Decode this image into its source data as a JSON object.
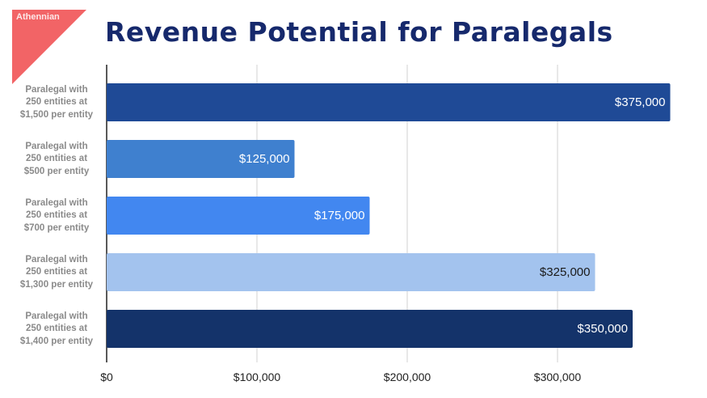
{
  "watermark": {
    "corner_text": "Athennian"
  },
  "chart_data": {
    "type": "bar",
    "orientation": "horizontal",
    "title": "Revenue Potential for Paralegals",
    "categories": [
      [
        "Paralegal with",
        "250 entities at",
        "$1,500 per entity"
      ],
      [
        "Paralegal with",
        "250 entities at",
        "$500 per entity"
      ],
      [
        "Paralegal with",
        "250 entities at",
        "$700 per entity"
      ],
      [
        "Paralegal with",
        "250 entities at",
        "$1,300 per entity"
      ],
      [
        "Paralegal with",
        "250 entities at",
        "$1,400 per entity"
      ]
    ],
    "values": [
      375000,
      125000,
      175000,
      325000,
      350000
    ],
    "data_labels": [
      "$375,000",
      "$125,000",
      "$175,000",
      "$325,000",
      "$350,000"
    ],
    "bar_colors": [
      "#1f4a96",
      "#3f80cf",
      "#4287f0",
      "#a3c3ee",
      "#14336a"
    ],
    "label_colors": [
      "#ffffff",
      "#ffffff",
      "#ffffff",
      "#1a1a1a",
      "#ffffff"
    ],
    "xticks": [
      0,
      100000,
      200000,
      300000
    ],
    "xtick_labels": [
      "$0",
      "$100,000",
      "$200,000",
      "$300,000"
    ],
    "xlim": [
      0,
      375000
    ],
    "grid": true,
    "xlabel": "",
    "ylabel": ""
  }
}
